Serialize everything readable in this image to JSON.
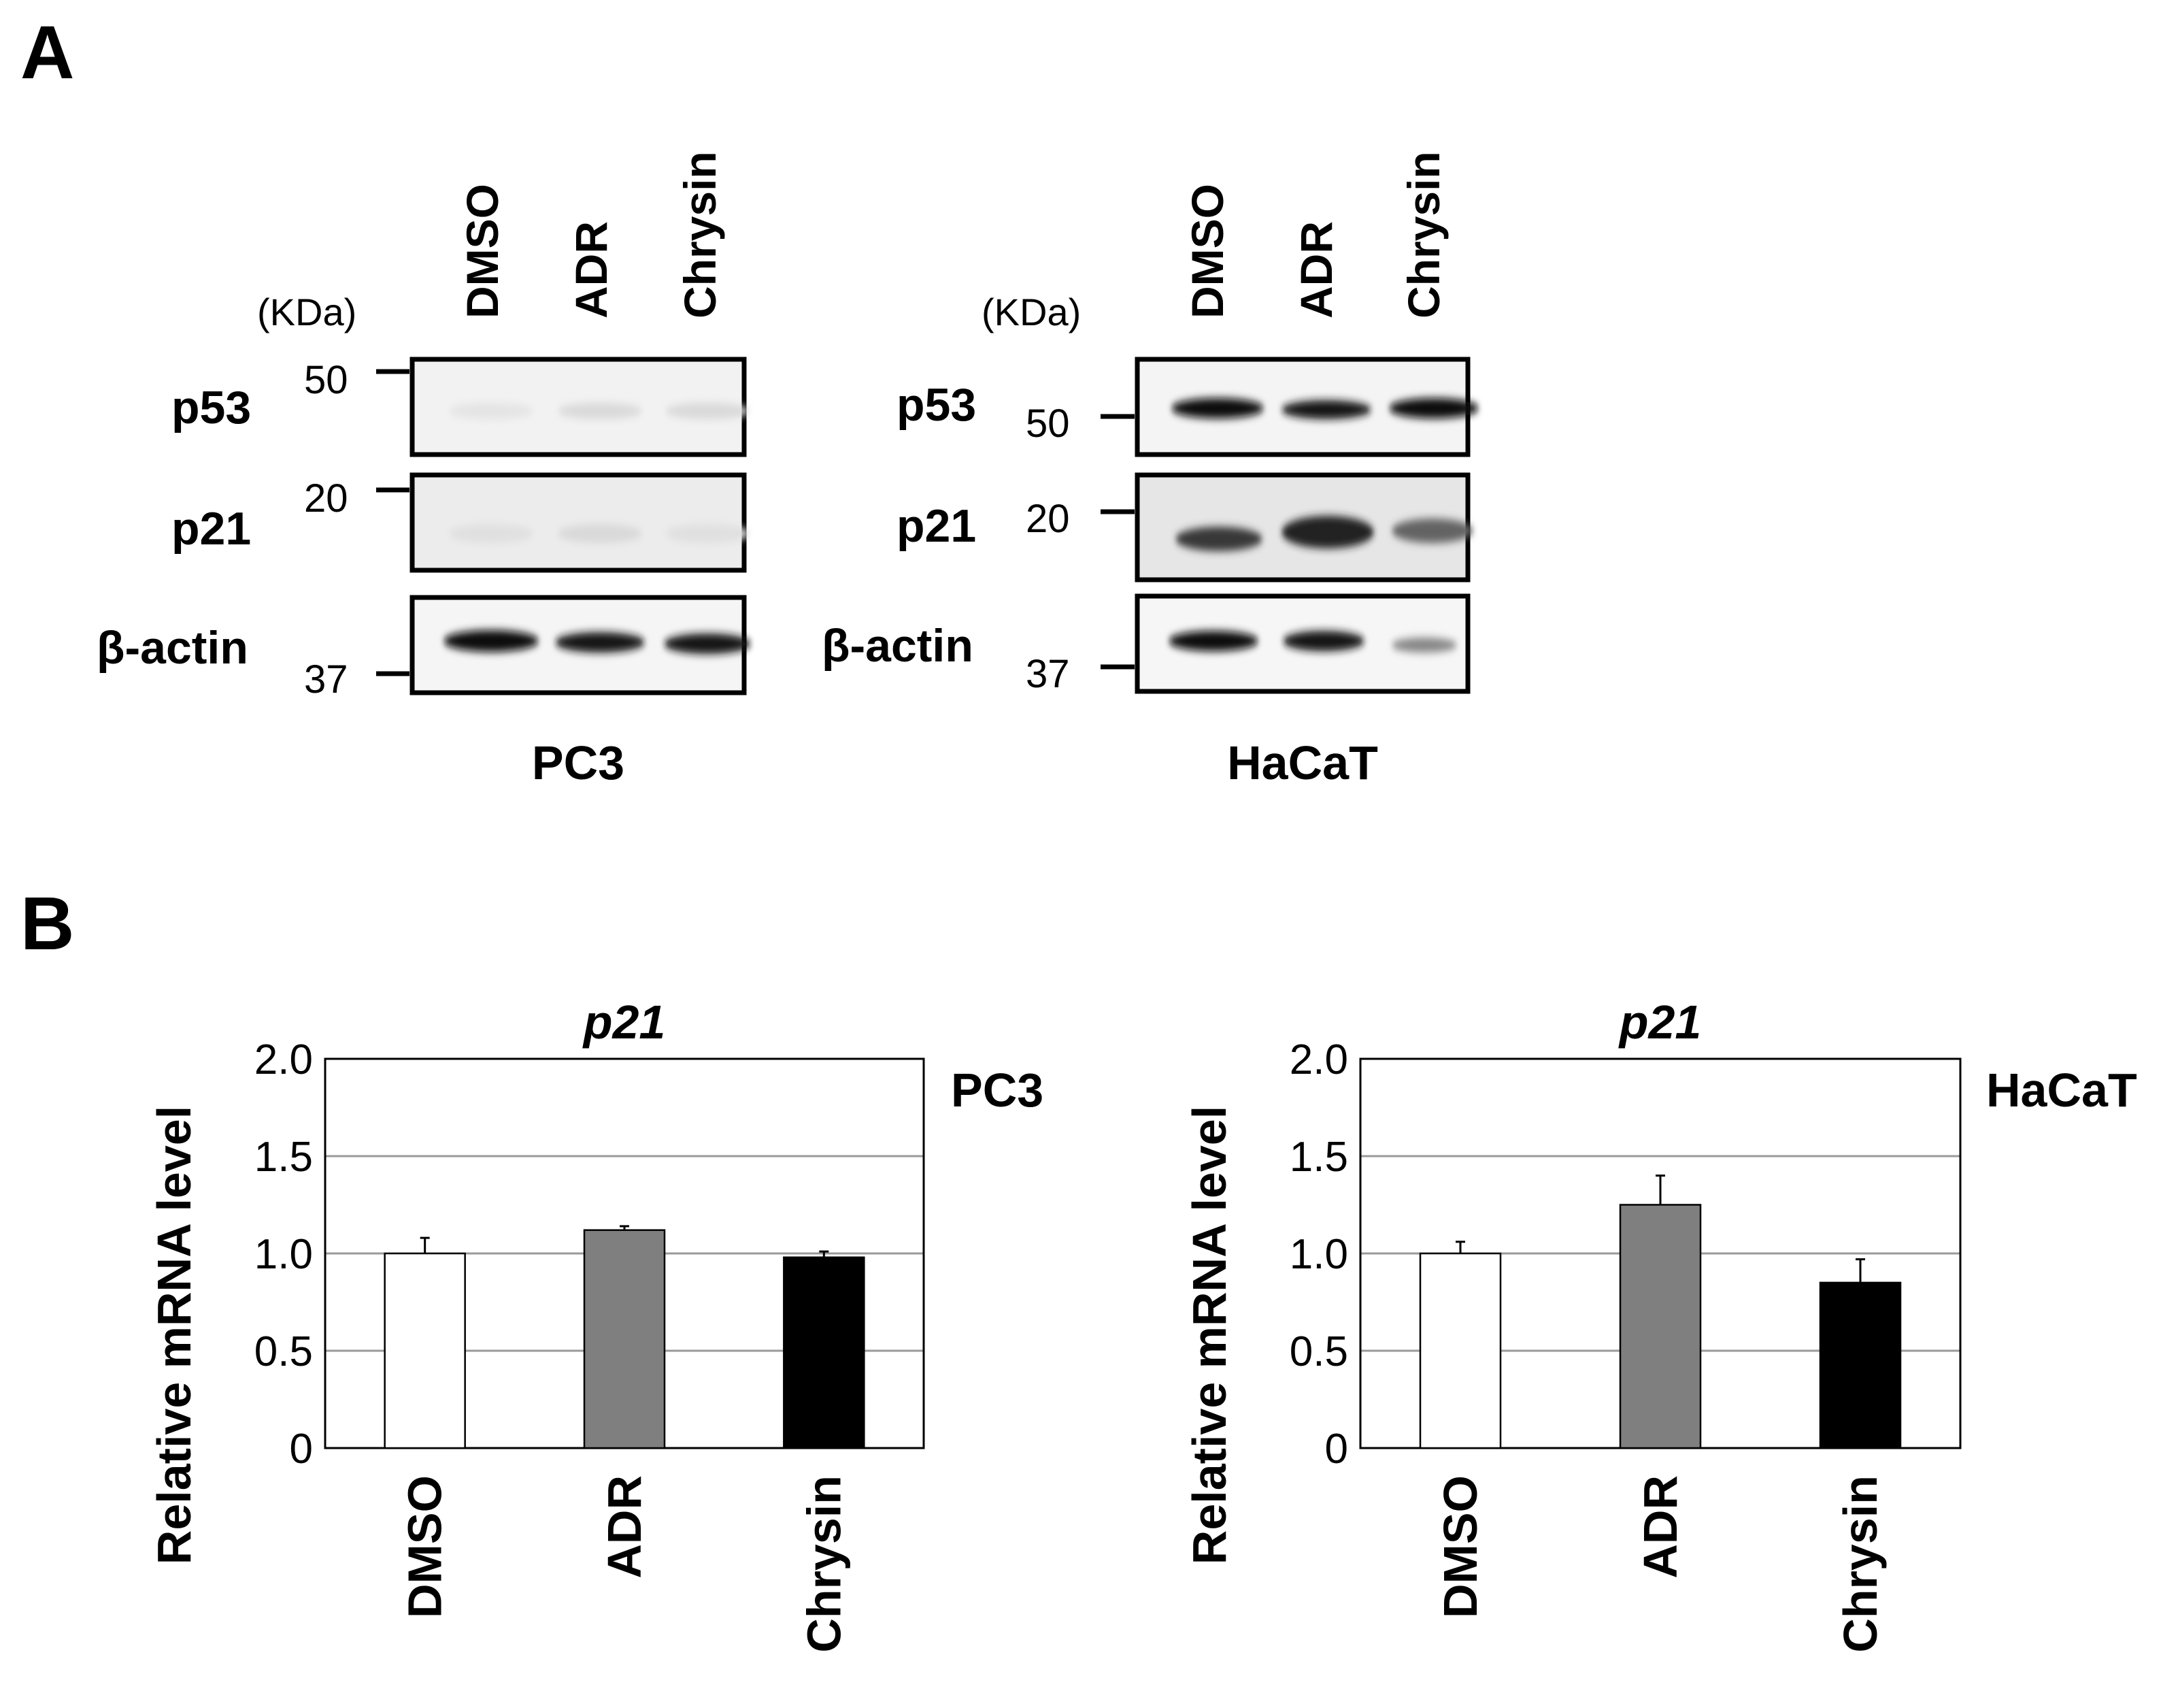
{
  "panel_a": {
    "label": "A",
    "unit_label": "(KDa)",
    "lanes": [
      "DMSO",
      "ADR",
      "Chrysin"
    ],
    "proteins": [
      "p53",
      "p21",
      "β-actin"
    ],
    "blots": [
      {
        "cell_line": "PC3",
        "markers": [
          "50",
          "20",
          "37"
        ],
        "band_intensity": {
          "p53": [
            0.03,
            0.08,
            0.08
          ],
          "p21": [
            0.05,
            0.08,
            0.05
          ],
          "β-actin": [
            1.0,
            0.95,
            0.95
          ]
        }
      },
      {
        "cell_line": "HaCaT",
        "markers": [
          "50",
          "20",
          "37"
        ],
        "band_intensity": {
          "p53": [
            1.0,
            0.95,
            1.0
          ],
          "p21": [
            0.8,
            0.9,
            0.6
          ],
          "β-actin": [
            1.0,
            0.95,
            0.45
          ]
        }
      }
    ]
  },
  "panel_b": {
    "label": "B"
  },
  "chart_data": [
    {
      "type": "bar",
      "title": "p21",
      "side_label": "PC3",
      "categories": [
        "DMSO",
        "ADR",
        "Chrysin"
      ],
      "values": [
        1.0,
        1.12,
        0.98
      ],
      "errors": [
        0.08,
        0.02,
        0.03
      ],
      "bar_colors": [
        "#ffffff",
        "#7f7f7f",
        "#000000"
      ],
      "ylabel": "Relative mRNA level",
      "xlabel": "",
      "ylim": [
        0,
        2.0
      ],
      "yticks": [
        "0",
        "0.5",
        "1.0",
        "1.5",
        "2.0"
      ],
      "grid": true
    },
    {
      "type": "bar",
      "title": "p21",
      "side_label": "HaCaT",
      "categories": [
        "DMSO",
        "ADR",
        "Chrysin"
      ],
      "values": [
        1.0,
        1.25,
        0.85
      ],
      "errors": [
        0.06,
        0.15,
        0.12
      ],
      "bar_colors": [
        "#ffffff",
        "#7f7f7f",
        "#000000"
      ],
      "ylabel": "Relative mRNA level",
      "xlabel": "",
      "ylim": [
        0,
        2.0
      ],
      "yticks": [
        "0",
        "0.5",
        "1.0",
        "1.5",
        "2.0"
      ],
      "grid": true
    }
  ]
}
